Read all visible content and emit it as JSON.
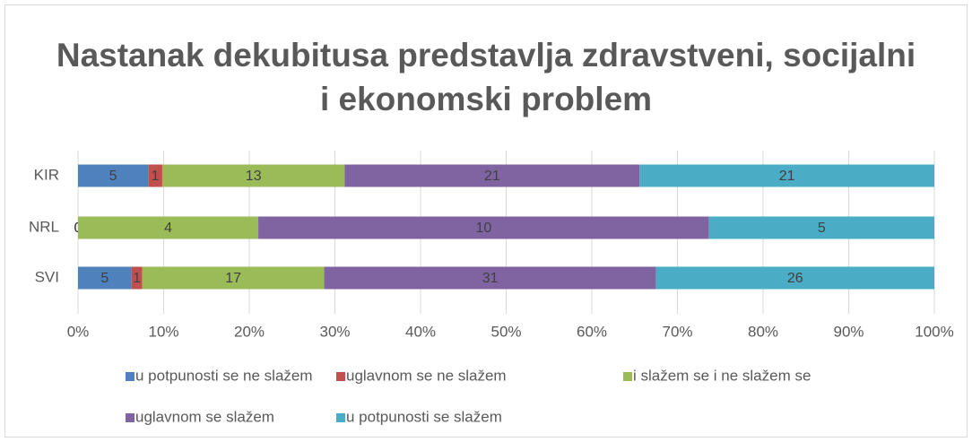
{
  "chart_data": {
    "type": "bar",
    "orientation": "horizontal",
    "stacking": "percent",
    "title": "Nastanak dekubitusa predstavlja zdravstveni, socijalni i ekonomski problem",
    "categories": [
      "KIR",
      "NRL",
      "SVI"
    ],
    "series": [
      {
        "name": "u potpunosti se ne slažem",
        "color": "#4f81bd",
        "values": [
          5,
          0,
          5
        ]
      },
      {
        "name": "uglavnom se ne slažem",
        "color": "#c0504d",
        "values": [
          1,
          0,
          1
        ]
      },
      {
        "name": "i slažem se i ne slažem se",
        "color": "#9bbb59",
        "values": [
          13,
          4,
          17
        ]
      },
      {
        "name": "uglavnom se slažem",
        "color": "#8064a2",
        "values": [
          21,
          10,
          31
        ]
      },
      {
        "name": "u potpunosti se slažem",
        "color": "#4bacc6",
        "values": [
          21,
          5,
          26
        ]
      }
    ],
    "xlim": [
      0,
      100
    ],
    "xticks": [
      {
        "value": 0,
        "label": "0%"
      },
      {
        "value": 10,
        "label": "10%"
      },
      {
        "value": 20,
        "label": "20%"
      },
      {
        "value": 30,
        "label": "30%"
      },
      {
        "value": 40,
        "label": "40%"
      },
      {
        "value": 50,
        "label": "50%"
      },
      {
        "value": 60,
        "label": "60%"
      },
      {
        "value": 70,
        "label": "70%"
      },
      {
        "value": 80,
        "label": "80%"
      },
      {
        "value": 90,
        "label": "90%"
      },
      {
        "value": 100,
        "label": "100%"
      }
    ],
    "grid": true,
    "legend": "bottom"
  }
}
